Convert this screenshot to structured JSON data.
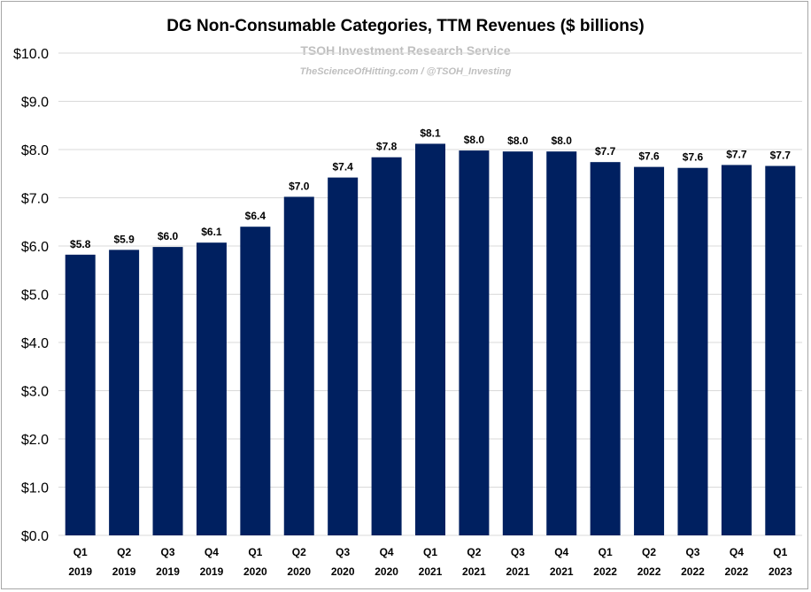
{
  "chart_data": {
    "type": "bar",
    "title": "DG Non-Consumable Categories, TTM Revenues ($ billions)",
    "watermark": {
      "line1": "TSOH Investment Research Service",
      "line2": "TheScienceOfHitting.com / @TSOH_Investing"
    },
    "categories": [
      [
        "Q1",
        "2019"
      ],
      [
        "Q2",
        "2019"
      ],
      [
        "Q3",
        "2019"
      ],
      [
        "Q4",
        "2019"
      ],
      [
        "Q1",
        "2020"
      ],
      [
        "Q2",
        "2020"
      ],
      [
        "Q3",
        "2020"
      ],
      [
        "Q4",
        "2020"
      ],
      [
        "Q1",
        "2021"
      ],
      [
        "Q2",
        "2021"
      ],
      [
        "Q3",
        "2021"
      ],
      [
        "Q4",
        "2021"
      ],
      [
        "Q1",
        "2022"
      ],
      [
        "Q2",
        "2022"
      ],
      [
        "Q3",
        "2022"
      ],
      [
        "Q4",
        "2022"
      ],
      [
        "Q1",
        "2023"
      ]
    ],
    "values": [
      5.82,
      5.92,
      5.98,
      6.07,
      6.4,
      7.02,
      7.42,
      7.84,
      8.12,
      7.98,
      7.96,
      7.96,
      7.74,
      7.64,
      7.62,
      7.68,
      7.66
    ],
    "data_labels": [
      "$5.8",
      "$5.9",
      "$6.0",
      "$6.1",
      "$6.4",
      "$7.0",
      "$7.4",
      "$7.8",
      "$8.1",
      "$8.0",
      "$8.0",
      "$8.0",
      "$7.7",
      "$7.6",
      "$7.6",
      "$7.7",
      "$7.7"
    ],
    "ylim": [
      0,
      10
    ],
    "yticks": [
      0,
      1,
      2,
      3,
      4,
      5,
      6,
      7,
      8,
      9,
      10
    ],
    "ytick_labels": [
      "$0.0",
      "$1.0",
      "$2.0",
      "$3.0",
      "$4.0",
      "$5.0",
      "$6.0",
      "$7.0",
      "$8.0",
      "$9.0",
      "$10.0"
    ],
    "grid": true,
    "legend": "none",
    "bar_color": "#002060"
  }
}
